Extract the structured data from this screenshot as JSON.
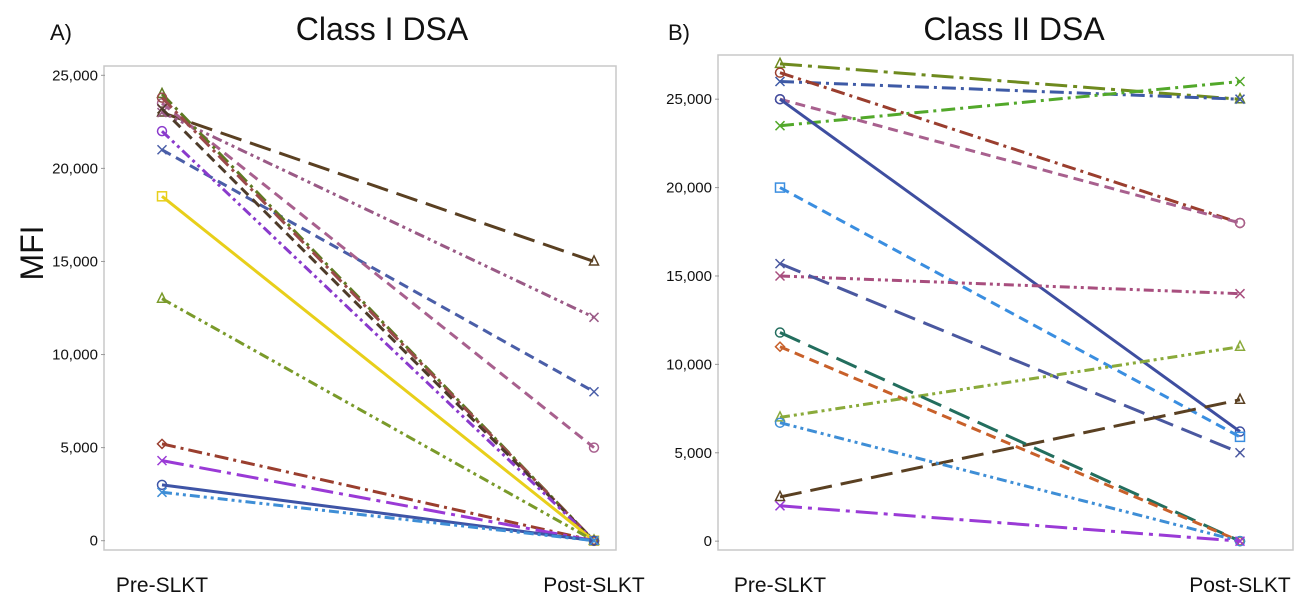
{
  "chart_data": [
    {
      "type": "line",
      "panel_label": "A)",
      "title": "Class I DSA",
      "ylabel": "MFI",
      "xlabel": "",
      "categories": [
        "Pre-SLKT",
        "Post-SLKT"
      ],
      "ylim": [
        -500,
        25500
      ],
      "yticks": [
        0,
        5000,
        10000,
        15000,
        20000,
        25000
      ],
      "ytick_labels": [
        "0",
        "5,000",
        "10,000",
        "15,000",
        "20,000",
        "25,000"
      ],
      "grid": false,
      "series": [
        {
          "values": [
            23000,
            15000
          ],
          "color": "#5a4022",
          "dash": "long",
          "marker": "triangle"
        },
        {
          "values": [
            23000,
            12000
          ],
          "color": "#9a5a86",
          "dash": "dashdotdot",
          "marker": "x"
        },
        {
          "values": [
            21000,
            8000
          ],
          "color": "#4a5ea8",
          "dash": "dash",
          "marker": "x"
        },
        {
          "values": [
            23500,
            5000
          ],
          "color": "#a8608e",
          "dash": "dash",
          "marker": "circle"
        },
        {
          "values": [
            24000,
            0
          ],
          "color": "#5e7a22",
          "dash": "dashdot",
          "marker": "triangle"
        },
        {
          "values": [
            23800,
            0
          ],
          "color": "#9a4a4a",
          "dash": "dashdot",
          "marker": "circle"
        },
        {
          "values": [
            23200,
            0
          ],
          "color": "#4e3c2a",
          "dash": "dash",
          "marker": "x"
        },
        {
          "values": [
            22000,
            0
          ],
          "color": "#8a3acc",
          "dash": "dashdotdot",
          "marker": "circle"
        },
        {
          "values": [
            18500,
            0
          ],
          "color": "#e8cf1a",
          "dash": "solid",
          "marker": "square"
        },
        {
          "values": [
            13000,
            0
          ],
          "color": "#7a9a2a",
          "dash": "dashdotdot",
          "marker": "triangle"
        },
        {
          "values": [
            5200,
            0
          ],
          "color": "#9a3e2e",
          "dash": "dashdot",
          "marker": "diamond"
        },
        {
          "values": [
            4300,
            0
          ],
          "color": "#9a3ad6",
          "dash": "longdashdot",
          "marker": "x"
        },
        {
          "values": [
            3000,
            0
          ],
          "color": "#3e54a6",
          "dash": "solid",
          "marker": "circle"
        },
        {
          "values": [
            2600,
            0
          ],
          "color": "#3e8ed6",
          "dash": "dashdotdot",
          "marker": "x"
        }
      ]
    },
    {
      "type": "line",
      "panel_label": "B)",
      "title": "Class II DSA",
      "ylabel": "",
      "xlabel": "",
      "categories": [
        "Pre-SLKT",
        "Post-SLKT"
      ],
      "ylim": [
        -500,
        27500
      ],
      "yticks": [
        0,
        5000,
        10000,
        15000,
        20000,
        25000
      ],
      "ytick_labels": [
        "0",
        "5,000",
        "10,000",
        "15,000",
        "20,000",
        "25,000"
      ],
      "grid": false,
      "series": [
        {
          "values": [
            27000,
            25000
          ],
          "color": "#6e8a1e",
          "dash": "longdashdot",
          "marker": "triangle"
        },
        {
          "values": [
            26000,
            25000
          ],
          "color": "#3e5aa6",
          "dash": "dashdot",
          "marker": "x"
        },
        {
          "values": [
            23500,
            26000
          ],
          "color": "#52a82a",
          "dash": "dashdot",
          "marker": "x"
        },
        {
          "values": [
            26500,
            18000
          ],
          "color": "#9a3e2e",
          "dash": "dashdot",
          "marker": "circle"
        },
        {
          "values": [
            25000,
            18000
          ],
          "color": "#a8608e",
          "dash": "dash",
          "marker": "circle"
        },
        {
          "values": [
            25000,
            6200
          ],
          "color": "#3e4ea0",
          "dash": "solid",
          "marker": "circle"
        },
        {
          "values": [
            20000,
            5900
          ],
          "color": "#3a8ee0",
          "dash": "dash",
          "marker": "square"
        },
        {
          "values": [
            15000,
            14000
          ],
          "color": "#a84e7e",
          "dash": "dashdotdot",
          "marker": "x"
        },
        {
          "values": [
            15700,
            5000
          ],
          "color": "#4a58a0",
          "dash": "long",
          "marker": "x"
        },
        {
          "values": [
            7000,
            11000
          ],
          "color": "#8aaa3a",
          "dash": "dashdotdot",
          "marker": "triangle"
        },
        {
          "values": [
            2500,
            8000
          ],
          "color": "#5a4022",
          "dash": "long",
          "marker": "triangle"
        },
        {
          "values": [
            11800,
            0
          ],
          "color": "#236e5e",
          "dash": "long",
          "marker": "circle"
        },
        {
          "values": [
            11000,
            0
          ],
          "color": "#c8602a",
          "dash": "dash",
          "marker": "diamond"
        },
        {
          "values": [
            6700,
            0
          ],
          "color": "#3e8ed6",
          "dash": "dashdotdot",
          "marker": "circle"
        },
        {
          "values": [
            2000,
            0
          ],
          "color": "#9a3ad6",
          "dash": "longdashdot",
          "marker": "x"
        }
      ]
    }
  ]
}
